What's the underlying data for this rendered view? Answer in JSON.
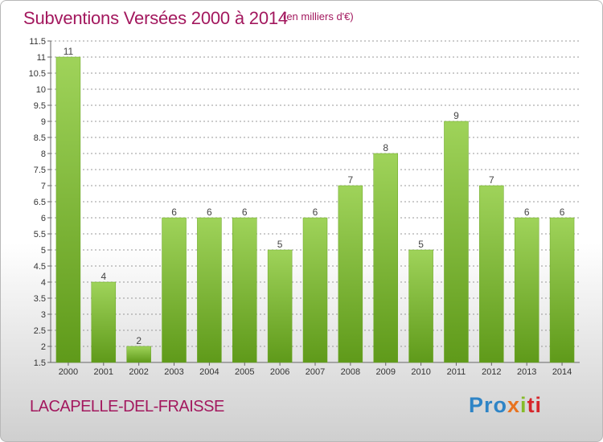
{
  "header": {
    "title": "Subventions Versées 2000 à 2014",
    "unit_note": "(en milliers d'€)"
  },
  "footer": {
    "commune": "LACAPELLE-DEL-FRAISSE",
    "logo_parts": [
      "Pro",
      "x",
      "i",
      "ti"
    ]
  },
  "colors": {
    "title": "#a3185e",
    "bar_top": "#9fd35a",
    "bar_bottom": "#5f9a1a",
    "grid": "#999999"
  },
  "chart_data": {
    "type": "bar",
    "title": "Subventions Versées 2000 à 2014",
    "subtitle": "(en milliers d'€)",
    "categories": [
      "2000",
      "2001",
      "2002",
      "2003",
      "2004",
      "2005",
      "2006",
      "2007",
      "2008",
      "2009",
      "2010",
      "2011",
      "2012",
      "2013",
      "2014"
    ],
    "values": [
      11,
      4,
      2,
      6,
      6,
      6,
      5,
      6,
      7,
      8,
      5,
      9,
      7,
      6,
      6
    ],
    "data_labels": [
      "11",
      "4",
      "2",
      "6",
      "6",
      "6",
      "5",
      "6",
      "7",
      "8",
      "5",
      "9",
      "7",
      "6",
      "6"
    ],
    "ylim": [
      1.5,
      11.5
    ],
    "yticks": [
      "1.5",
      "2",
      "2.5",
      "3",
      "3.5",
      "4",
      "4.5",
      "5",
      "5.5",
      "6",
      "6.5",
      "7",
      "7.5",
      "8",
      "8.5",
      "9",
      "9.5",
      "10",
      "10.5",
      "11",
      "11.5"
    ],
    "grid": true,
    "xlabel": "",
    "ylabel": ""
  }
}
